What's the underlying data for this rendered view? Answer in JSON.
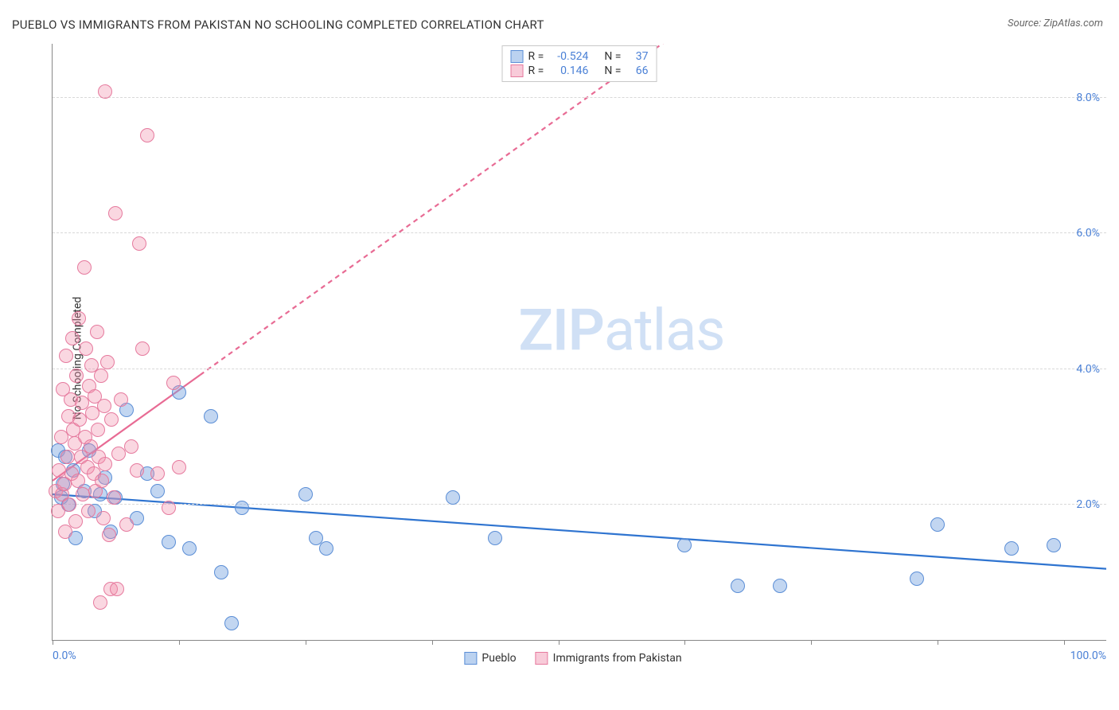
{
  "title": "PUEBLO VS IMMIGRANTS FROM PAKISTAN NO SCHOOLING COMPLETED CORRELATION CHART",
  "source_label": "Source: ZipAtlas.com",
  "y_axis_label": "No Schooling Completed",
  "watermark_a": "ZIP",
  "watermark_b": "atlas",
  "chart": {
    "type": "scatter",
    "xlim": [
      0,
      100
    ],
    "ylim": [
      0,
      8.8
    ],
    "y_ticks": [
      2,
      4,
      6,
      8
    ],
    "y_tick_labels": [
      "2.0%",
      "4.0%",
      "6.0%",
      "8.0%"
    ],
    "x_ticks": [
      0,
      12,
      24,
      36,
      48,
      60,
      72,
      84,
      96
    ],
    "x_min_label": "0.0%",
    "x_max_label": "100.0%",
    "grid_color": "#d8d8d8",
    "axis_color": "#888888",
    "background_color": "#ffffff",
    "series": [
      {
        "name": "Pueblo",
        "fill_color": "rgba(120, 165, 225, 0.45)",
        "stroke_color": "#5b8ed6",
        "trend_color": "#2f74d0",
        "trend_dash": "none",
        "R": "-0.524",
        "N": "37",
        "trend": {
          "x1": 0,
          "y1": 2.15,
          "x2": 100,
          "y2": 1.05
        },
        "points": [
          [
            0.5,
            2.8
          ],
          [
            0.8,
            2.1
          ],
          [
            1,
            2.3
          ],
          [
            1.2,
            2.7
          ],
          [
            1.5,
            2.0
          ],
          [
            2,
            2.5
          ],
          [
            2.2,
            1.5
          ],
          [
            3,
            2.2
          ],
          [
            3.5,
            2.8
          ],
          [
            4,
            1.9
          ],
          [
            4.5,
            2.15
          ],
          [
            5,
            2.4
          ],
          [
            5.5,
            1.6
          ],
          [
            6,
            2.1
          ],
          [
            7,
            3.4
          ],
          [
            8,
            1.8
          ],
          [
            9,
            2.45
          ],
          [
            10,
            2.2
          ],
          [
            11,
            1.45
          ],
          [
            12,
            3.65
          ],
          [
            13,
            1.35
          ],
          [
            15,
            3.3
          ],
          [
            16,
            1.0
          ],
          [
            17,
            0.25
          ],
          [
            18,
            1.95
          ],
          [
            24,
            2.15
          ],
          [
            25,
            1.5
          ],
          [
            26,
            1.35
          ],
          [
            38,
            2.1
          ],
          [
            42,
            1.5
          ],
          [
            60,
            1.4
          ],
          [
            65,
            0.8
          ],
          [
            69,
            0.8
          ],
          [
            82,
            0.9
          ],
          [
            84,
            1.7
          ],
          [
            91,
            1.35
          ],
          [
            95,
            1.4
          ]
        ]
      },
      {
        "name": "Immigrants from Pakistan",
        "fill_color": "rgba(240, 140, 170, 0.35)",
        "stroke_color": "#e67a9e",
        "trend_color": "#e86b94",
        "trend_dash": "6,5",
        "R": "0.146",
        "N": "66",
        "trend": {
          "x1": 0,
          "y1": 2.35,
          "x2": 100,
          "y2": 13.5
        },
        "points": [
          [
            0.3,
            2.2
          ],
          [
            0.5,
            1.9
          ],
          [
            0.6,
            2.5
          ],
          [
            0.8,
            3.0
          ],
          [
            0.9,
            2.15
          ],
          [
            1,
            3.7
          ],
          [
            1.1,
            2.3
          ],
          [
            1.2,
            1.6
          ],
          [
            1.3,
            4.2
          ],
          [
            1.4,
            2.7
          ],
          [
            1.5,
            3.3
          ],
          [
            1.6,
            2.0
          ],
          [
            1.7,
            3.55
          ],
          [
            1.8,
            2.45
          ],
          [
            1.9,
            4.45
          ],
          [
            2,
            3.1
          ],
          [
            2.1,
            2.9
          ],
          [
            2.2,
            1.75
          ],
          [
            2.3,
            3.9
          ],
          [
            2.4,
            2.35
          ],
          [
            2.5,
            4.75
          ],
          [
            2.6,
            3.25
          ],
          [
            2.7,
            2.7
          ],
          [
            2.8,
            3.5
          ],
          [
            2.9,
            2.15
          ],
          [
            3,
            5.5
          ],
          [
            3.1,
            3.0
          ],
          [
            3.2,
            4.3
          ],
          [
            3.3,
            2.55
          ],
          [
            3.4,
            1.9
          ],
          [
            3.5,
            3.75
          ],
          [
            3.6,
            2.85
          ],
          [
            3.7,
            4.05
          ],
          [
            3.8,
            3.35
          ],
          [
            3.9,
            2.45
          ],
          [
            4,
            3.6
          ],
          [
            4.1,
            2.2
          ],
          [
            4.2,
            4.55
          ],
          [
            4.3,
            3.1
          ],
          [
            4.4,
            2.7
          ],
          [
            4.5,
            0.55
          ],
          [
            4.6,
            3.9
          ],
          [
            4.7,
            2.35
          ],
          [
            4.8,
            1.8
          ],
          [
            4.9,
            3.45
          ],
          [
            5,
            2.6
          ],
          [
            5.2,
            4.1
          ],
          [
            5.4,
            1.55
          ],
          [
            5.6,
            3.25
          ],
          [
            5.8,
            2.1
          ],
          [
            5.5,
            0.75
          ],
          [
            6.1,
            0.75
          ],
          [
            6,
            6.3
          ],
          [
            6.3,
            2.75
          ],
          [
            6.5,
            3.55
          ],
          [
            7,
            1.7
          ],
          [
            7.5,
            2.85
          ],
          [
            8,
            2.5
          ],
          [
            8.2,
            5.85
          ],
          [
            8.5,
            4.3
          ],
          [
            9,
            7.45
          ],
          [
            5,
            8.1
          ],
          [
            10,
            2.45
          ],
          [
            11,
            1.95
          ],
          [
            11.5,
            3.8
          ],
          [
            12,
            2.55
          ]
        ]
      }
    ]
  },
  "legend_top_R_label": "R =",
  "legend_top_N_label": "N =",
  "legend_bottom": [
    {
      "label": "Pueblo",
      "swatch": "blue"
    },
    {
      "label": "Immigrants from Pakistan",
      "swatch": "pink"
    }
  ]
}
